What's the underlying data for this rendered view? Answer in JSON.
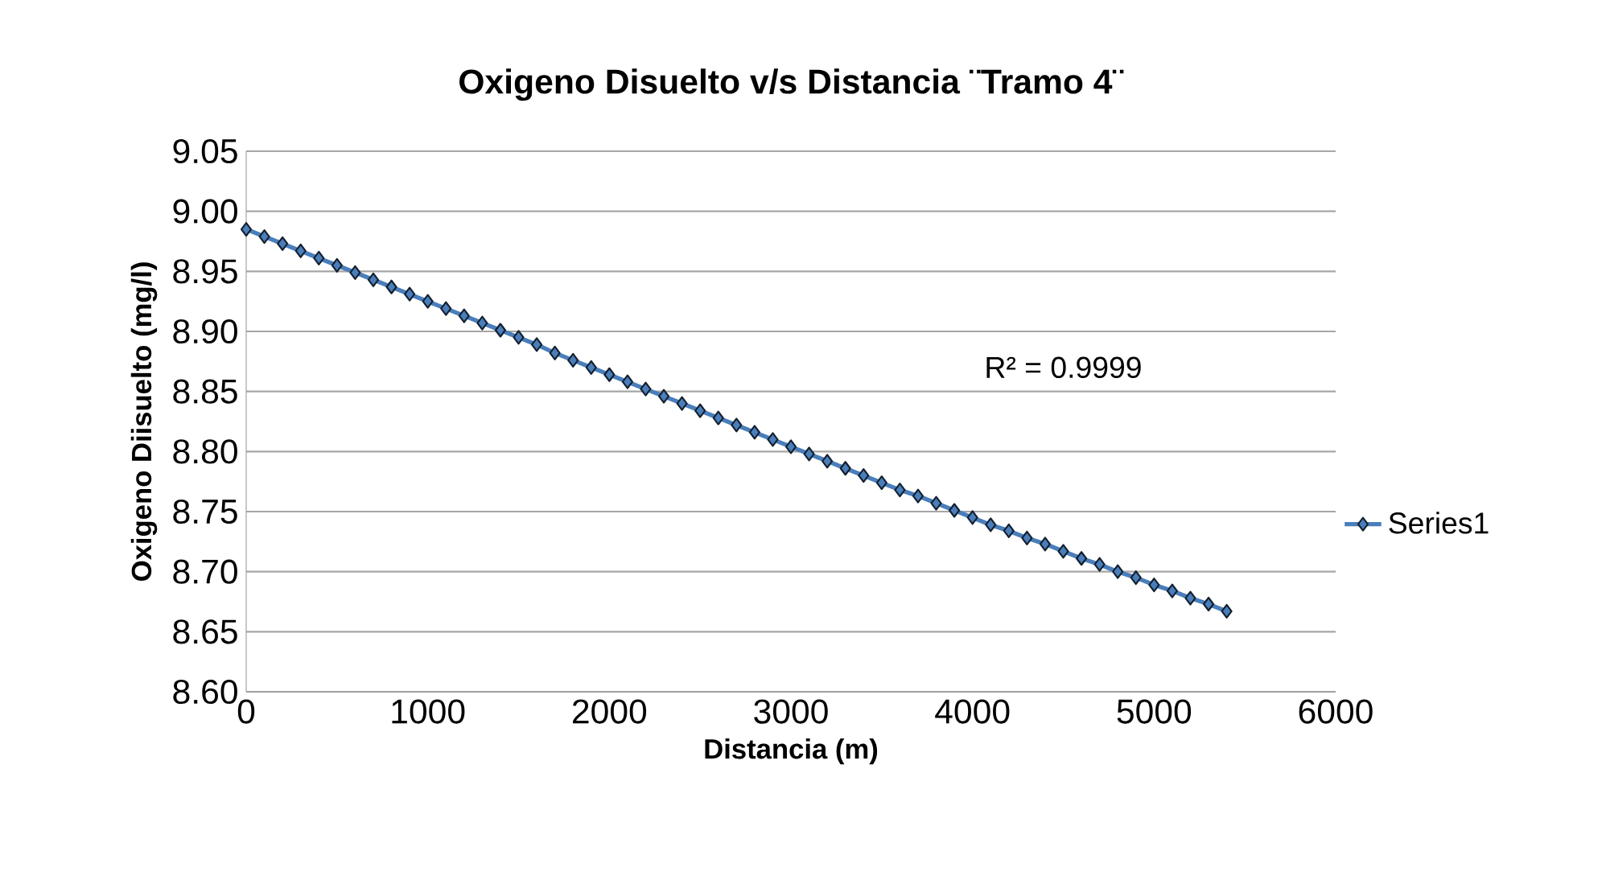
{
  "chart_data": {
    "type": "line",
    "title": "Oxigeno Disuelto v/s Distancia ¨Tramo 4¨",
    "xlabel": "Distancia (m)",
    "ylabel": "Oxigeno Diisuelto (mg/l)",
    "x": [
      0,
      100,
      200,
      300,
      400,
      500,
      600,
      700,
      800,
      900,
      1000,
      1100,
      1200,
      1300,
      1400,
      1500,
      1600,
      1700,
      1800,
      1900,
      2000,
      2100,
      2200,
      2300,
      2400,
      2500,
      2600,
      2700,
      2800,
      2900,
      3000,
      3100,
      3200,
      3300,
      3400,
      3500,
      3600,
      3700,
      3800,
      3900,
      4000,
      4100,
      4200,
      4300,
      4400,
      4500,
      4600,
      4700,
      4800,
      4900,
      5000,
      5100,
      5200,
      5300,
      5400
    ],
    "series": [
      {
        "name": "Series1",
        "color": "#4a7ebb",
        "values": [
          8.985,
          8.979,
          8.973,
          8.967,
          8.961,
          8.955,
          8.949,
          8.943,
          8.937,
          8.931,
          8.925,
          8.919,
          8.913,
          8.907,
          8.901,
          8.895,
          8.889,
          8.882,
          8.876,
          8.87,
          8.864,
          8.858,
          8.852,
          8.846,
          8.84,
          8.834,
          8.828,
          8.822,
          8.816,
          8.81,
          8.804,
          8.798,
          8.792,
          8.786,
          8.78,
          8.774,
          8.768,
          8.763,
          8.757,
          8.751,
          8.745,
          8.739,
          8.734,
          8.728,
          8.723,
          8.717,
          8.711,
          8.706,
          8.7,
          8.695,
          8.689,
          8.684,
          8.678,
          8.673,
          8.667
        ]
      }
    ],
    "annotations": [
      "R² = 0.9999"
    ],
    "xlim": [
      0,
      6000
    ],
    "xticks": [
      0,
      1000,
      2000,
      3000,
      4000,
      5000,
      6000
    ],
    "ylim": [
      8.6,
      9.05
    ],
    "yticks": [
      {
        "value": 8.6,
        "label": "8.60"
      },
      {
        "value": 8.65,
        "label": "8.65"
      },
      {
        "value": 8.7,
        "label": "8.70"
      },
      {
        "value": 8.75,
        "label": "8.75"
      },
      {
        "value": 8.8,
        "label": "8.80"
      },
      {
        "value": 8.85,
        "label": "8.85"
      },
      {
        "value": 8.9,
        "label": "8.90"
      },
      {
        "value": 8.95,
        "label": "8.95"
      },
      {
        "value": 9.0,
        "label": "9.00"
      },
      {
        "value": 9.05,
        "label": "9.05"
      }
    ],
    "grid": "y",
    "legend": "right",
    "marker": "diamond",
    "line_style": "solid"
  }
}
